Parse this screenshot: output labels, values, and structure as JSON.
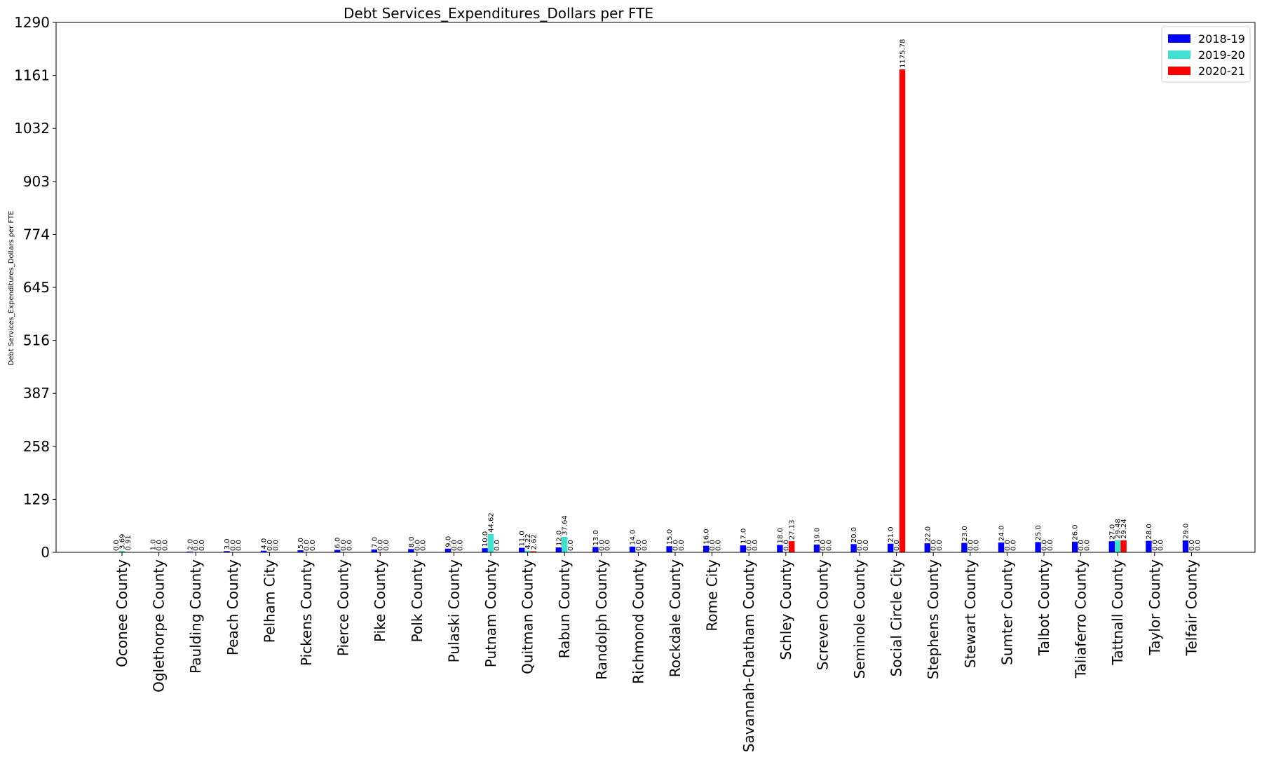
{
  "chart_data": {
    "type": "bar",
    "title": "Debt Services_Expenditures_Dollars per FTE",
    "xlabel": "",
    "ylabel": "Debt Services_Expenditures_Dollars per FTE",
    "ylim": [
      0,
      1290
    ],
    "yticks": [
      0,
      129,
      258,
      387,
      516,
      645,
      774,
      903,
      1032,
      1161,
      1290
    ],
    "grid": false,
    "legend_placement": "top-right",
    "categories": [
      "Oconee County",
      "Oglethorpe County",
      "Paulding County",
      "Peach County",
      "Pelham City",
      "Pickens County",
      "Pierce County",
      "Pike County",
      "Polk County",
      "Pulaski County",
      "Putnam County",
      "Quitman County",
      "Rabun County",
      "Randolph County",
      "Richmond County",
      "Rockdale County",
      "Rome City",
      "Savannah-Chatham County",
      "Schley County",
      "Screven County",
      "Seminole County",
      "Social Circle City",
      "Stephens County",
      "Stewart County",
      "Sumter County",
      "Talbot County",
      "Taliaferro County",
      "Tattnall County",
      "Taylor County",
      "Telfair County"
    ],
    "series": [
      {
        "name": "2018-19",
        "color": "#0000ff",
        "values": [
          0.0,
          1.0,
          2.0,
          3.0,
          4.0,
          5.0,
          6.0,
          7.0,
          8.0,
          9.0,
          10.0,
          11.0,
          12.0,
          13.0,
          14.0,
          15.0,
          16.0,
          17.0,
          18.0,
          19.0,
          20.0,
          21.0,
          22.0,
          23.0,
          24.0,
          25.0,
          26.0,
          27.0,
          28.0,
          29.0
        ],
        "labels": [
          "0.0",
          "1.0",
          "2.0",
          "3.0",
          "4.0",
          "5.0",
          "6.0",
          "7.0",
          "8.0",
          "9.0",
          "10.0",
          "11.0",
          "12.0",
          "13.0",
          "14.0",
          "15.0",
          "16.0",
          "17.0",
          "18.0",
          "19.0",
          "20.0",
          "21.0",
          "22.0",
          "23.0",
          "24.0",
          "25.0",
          "26.0",
          "27.0",
          "28.0",
          "29.0"
        ]
      },
      {
        "name": "2019-20",
        "color": "#40e0d0",
        "values": [
          3.69,
          0.0,
          0.0,
          0.0,
          0.0,
          0.0,
          0.0,
          0.0,
          0.0,
          0.0,
          44.62,
          4.22,
          37.64,
          0.0,
          0.0,
          0.0,
          0.0,
          0.0,
          0.0,
          0.0,
          0.0,
          0.0,
          0.0,
          0.0,
          0.0,
          0.0,
          0.0,
          29.48,
          0.0,
          0.0
        ],
        "labels": [
          "3.69",
          "0.0",
          "0.0",
          "0.0",
          "0.0",
          "0.0",
          "0.0",
          "0.0",
          "0.0",
          "0.0",
          "44.62",
          "4.22",
          "37.64",
          "0.0",
          "0.0",
          "0.0",
          "0.0",
          "0.0",
          "0.0",
          "0.0",
          "0.0",
          "0.0",
          "0.0",
          "0.0",
          "0.0",
          "0.0",
          "0.0",
          "29.48",
          "0.0",
          "0.0"
        ]
      },
      {
        "name": "2020-21",
        "color": "#ff0000",
        "values": [
          0.91,
          0.0,
          0.0,
          0.0,
          0.0,
          0.0,
          0.0,
          0.0,
          0.0,
          0.0,
          0.0,
          2.62,
          0.0,
          0.0,
          0.0,
          0.0,
          0.0,
          0.0,
          27.13,
          0.0,
          0.0,
          1175.78,
          0.0,
          0.0,
          0.0,
          0.0,
          0.0,
          29.24,
          0.0,
          0.0
        ],
        "labels": [
          "0.91",
          "0.0",
          "0.0",
          "0.0",
          "0.0",
          "0.0",
          "0.0",
          "0.0",
          "0.0",
          "0.0",
          "0.0",
          "2.62",
          "0.0",
          "0.0",
          "0.0",
          "0.0",
          "0.0",
          "0.0",
          "27.13",
          "0.0",
          "0.0",
          "1175.78",
          "0.0",
          "0.0",
          "0.0",
          "0.0",
          "0.0",
          "29.24",
          "0.0",
          "0.0"
        ]
      }
    ]
  }
}
